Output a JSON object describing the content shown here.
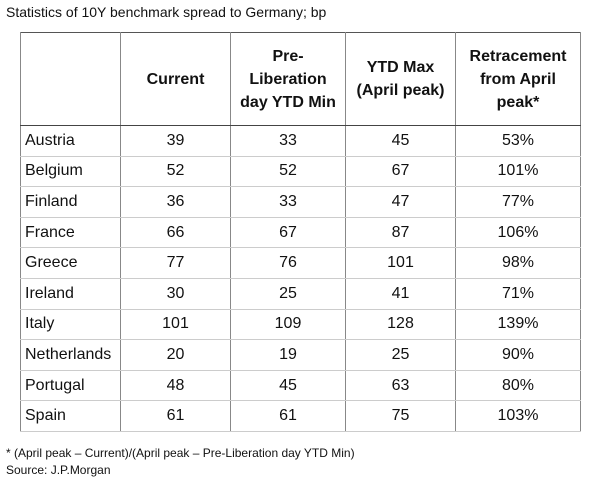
{
  "header": {
    "title": "Statistics of 10Y benchmark spread to Germany; bp"
  },
  "table": {
    "columns": [
      "Current",
      "Pre-Liberation day YTD Min",
      "YTD Max (April peak)",
      "Retracement from April peak*"
    ],
    "rows": [
      [
        "Austria",
        "39",
        "33",
        "45",
        "53%"
      ],
      [
        "Belgium",
        "52",
        "52",
        "67",
        "101%"
      ],
      [
        "Finland",
        "36",
        "33",
        "47",
        "77%"
      ],
      [
        "France",
        "66",
        "67",
        "87",
        "106%"
      ],
      [
        "Greece",
        "77",
        "76",
        "101",
        "98%"
      ],
      [
        "Ireland",
        "30",
        "25",
        "41",
        "71%"
      ],
      [
        "Italy",
        "101",
        "109",
        "128",
        "139%"
      ],
      [
        "Netherlands",
        "20",
        "19",
        "25",
        "90%"
      ],
      [
        "Portugal",
        "48",
        "45",
        "63",
        "80%"
      ],
      [
        "Spain",
        "61",
        "61",
        "75",
        "103%"
      ]
    ]
  },
  "footer": {
    "note": "* (April peak – Current)/(April peak – Pre-Liberation day YTD Min)",
    "source": "Source: J.P.Morgan"
  }
}
